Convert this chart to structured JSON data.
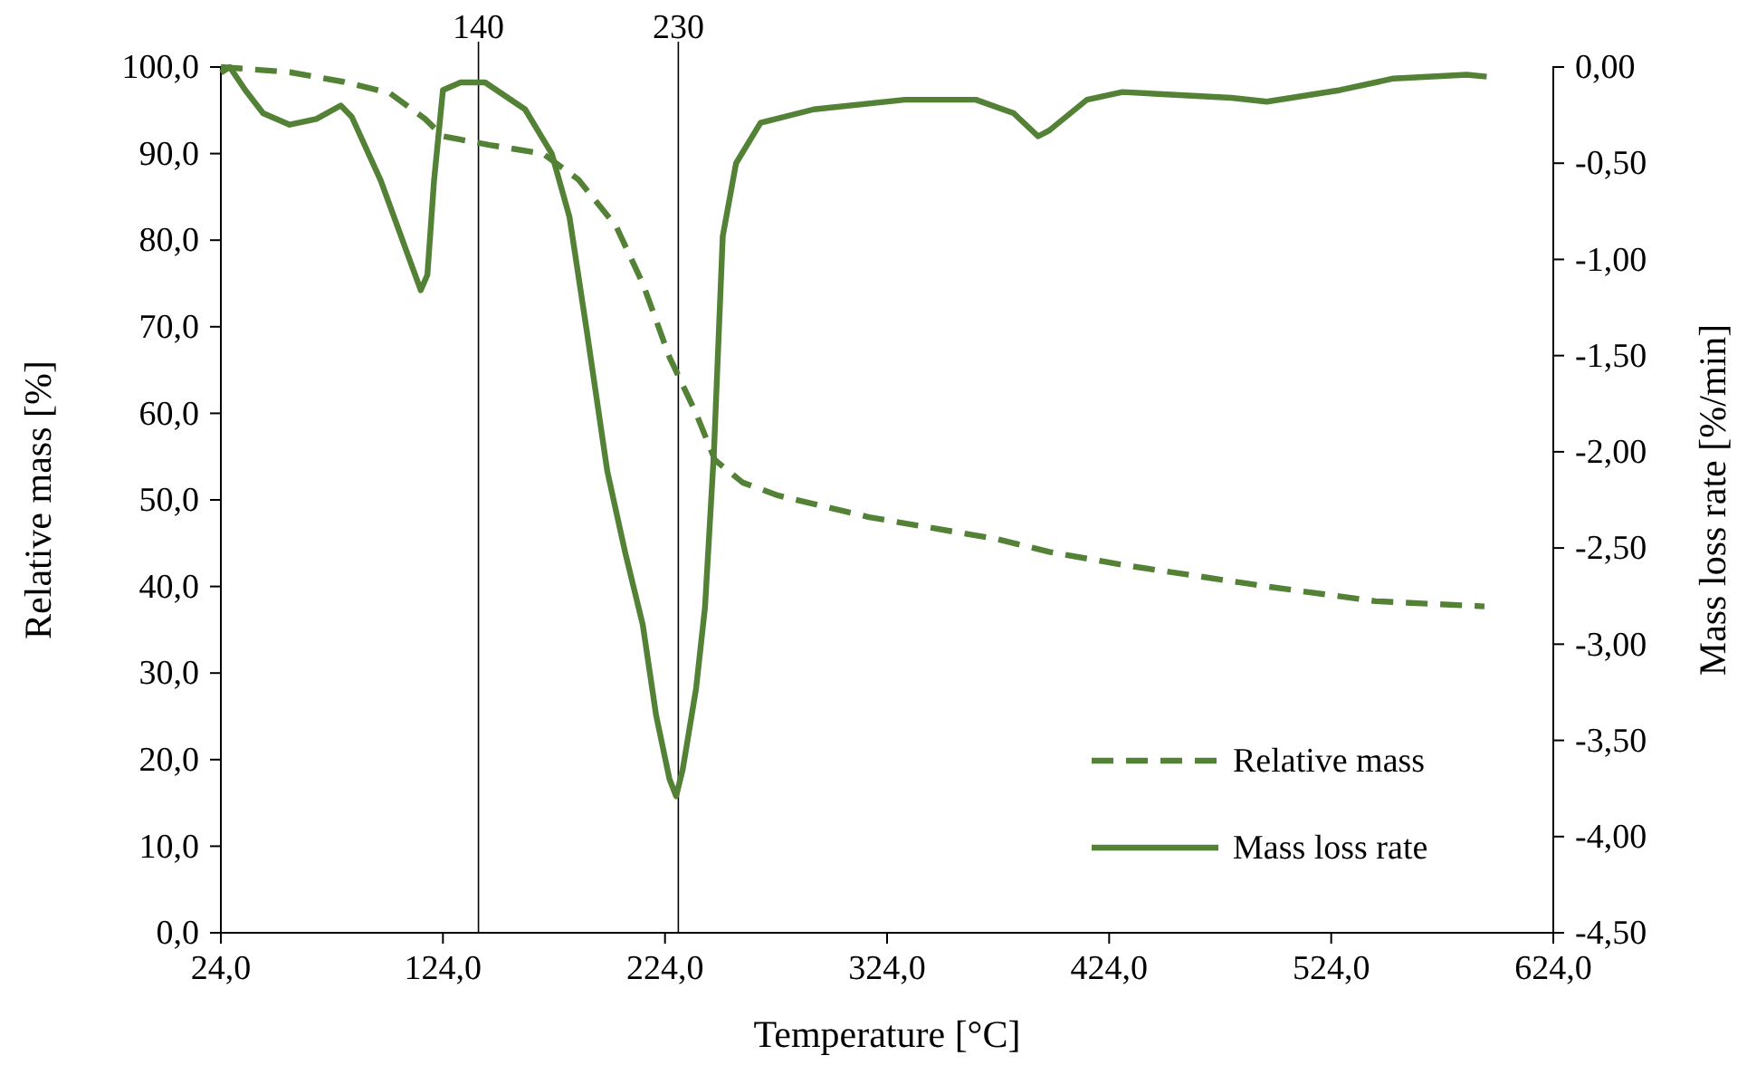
{
  "chart_data": {
    "type": "line",
    "xlabel": "Temperature [°C]",
    "ylabel": "Relative mass [%]",
    "y2label": "Mass loss rate [%/min]",
    "xlim": [
      24,
      624
    ],
    "xticks": [
      {
        "value": 24,
        "label": "24,0"
      },
      {
        "value": 124,
        "label": "124,0"
      },
      {
        "value": 224,
        "label": "224,0"
      },
      {
        "value": 324,
        "label": "324,0"
      },
      {
        "value": 424,
        "label": "424,0"
      },
      {
        "value": 524,
        "label": "524,0"
      },
      {
        "value": 624,
        "label": "624,0"
      }
    ],
    "ylim": [
      0,
      100
    ],
    "yticks": [
      {
        "value": 0,
        "label": "0,0"
      },
      {
        "value": 10,
        "label": "10,0"
      },
      {
        "value": 20,
        "label": "20,0"
      },
      {
        "value": 30,
        "label": "30,0"
      },
      {
        "value": 40,
        "label": "40,0"
      },
      {
        "value": 50,
        "label": "50,0"
      },
      {
        "value": 60,
        "label": "60,0"
      },
      {
        "value": 70,
        "label": "70,0"
      },
      {
        "value": 80,
        "label": "80,0"
      },
      {
        "value": 90,
        "label": "90,0"
      },
      {
        "value": 100,
        "label": "100,0"
      }
    ],
    "y2lim": [
      -4.5,
      0
    ],
    "y2ticks": [
      {
        "value": 0,
        "label": "0,00"
      },
      {
        "value": -0.5,
        "label": "-0,50"
      },
      {
        "value": -1,
        "label": "-1,00"
      },
      {
        "value": -1.5,
        "label": "-1,50"
      },
      {
        "value": -2,
        "label": "-2,00"
      },
      {
        "value": -2.5,
        "label": "-2,50"
      },
      {
        "value": -3,
        "label": "-3,00"
      },
      {
        "value": -3.5,
        "label": "-3,50"
      },
      {
        "value": -4,
        "label": "-4,00"
      },
      {
        "value": -4.5,
        "label": "-4,50"
      }
    ],
    "legend": "bottom right",
    "grid": false,
    "ref_lines": [
      {
        "axis": "x",
        "value": 140,
        "label": "140",
        "color": "#000000"
      },
      {
        "axis": "x",
        "value": 230,
        "label": "230",
        "color": "#000000"
      }
    ],
    "series": [
      {
        "name": "Relative mass",
        "color": "#538135",
        "line_style": "dashed",
        "x": [
          24,
          55,
          79,
          100,
          116,
          124,
          145,
          169,
          185,
          202,
          214,
          226,
          238,
          246.5,
          259,
          275,
          316,
          373,
          397,
          430,
          495,
          544,
          593
        ],
        "values": [
          100,
          99.4,
          98.3,
          97,
          94,
          92,
          91,
          90,
          87,
          81.6,
          75,
          66.5,
          60,
          54.6,
          52,
          50.5,
          48,
          45.5,
          44,
          42.5,
          40,
          38.3,
          37.7
        ]
      },
      {
        "name": "Mass loss rate",
        "color": "#538135",
        "line_style": "solid",
        "axis": "y2",
        "x": [
          24,
          28,
          35,
          43,
          55,
          67,
          78,
          83,
          96,
          108,
          114,
          117,
          120,
          124,
          132,
          143,
          161,
          173,
          181,
          189,
          198,
          206,
          214,
          220,
          226,
          229,
          232,
          238,
          242,
          246,
          250,
          256,
          267,
          291,
          332,
          364,
          381,
          392,
          397,
          414,
          430,
          479,
          495,
          528,
          552,
          585,
          594
        ],
        "values": [
          -0.03,
          0,
          -0.12,
          -0.24,
          -0.3,
          -0.27,
          -0.2,
          -0.26,
          -0.59,
          -0.97,
          -1.16,
          -1.08,
          -0.59,
          -0.12,
          -0.08,
          -0.08,
          -0.22,
          -0.45,
          -0.78,
          -1.39,
          -2.1,
          -2.52,
          -2.9,
          -3.37,
          -3.7,
          -3.79,
          -3.65,
          -3.23,
          -2.81,
          -2.01,
          -0.88,
          -0.5,
          -0.29,
          -0.22,
          -0.17,
          -0.17,
          -0.24,
          -0.36,
          -0.33,
          -0.17,
          -0.13,
          -0.16,
          -0.18,
          -0.12,
          -0.06,
          -0.04,
          -0.05
        ]
      }
    ]
  }
}
